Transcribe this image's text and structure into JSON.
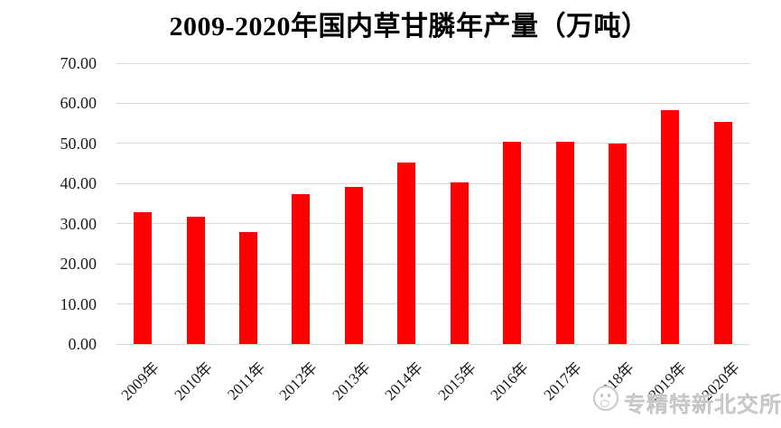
{
  "chart_data": {
    "type": "bar",
    "title": "2009-2020年国内草甘膦年产量（万吨）",
    "categories": [
      "2009年",
      "2010年",
      "2011年",
      "2012年",
      "2013年",
      "2014年",
      "2015年",
      "2016年",
      "2017年",
      "2018年",
      "2019年",
      "2020年"
    ],
    "values": [
      32.8,
      31.7,
      28.0,
      37.3,
      39.1,
      45.2,
      40.3,
      50.5,
      50.5,
      49.9,
      58.4,
      55.3
    ],
    "xlabel": "",
    "ylabel": "",
    "ylim": [
      0,
      70
    ],
    "ytick_step": 10,
    "ytick_labels": [
      "0.00",
      "10.00",
      "20.00",
      "30.00",
      "40.00",
      "50.00",
      "60.00",
      "70.00"
    ],
    "grid": true,
    "legend": "none",
    "bar_color": "#FF0000",
    "gridline_color": "#D9D9D9",
    "axis_text_color": "#1A1A1A",
    "title_color": "#000000"
  },
  "watermark": {
    "icon": "wechat-smiley-icon",
    "text": "专精特新北交所",
    "color": "#C8C8C8"
  }
}
